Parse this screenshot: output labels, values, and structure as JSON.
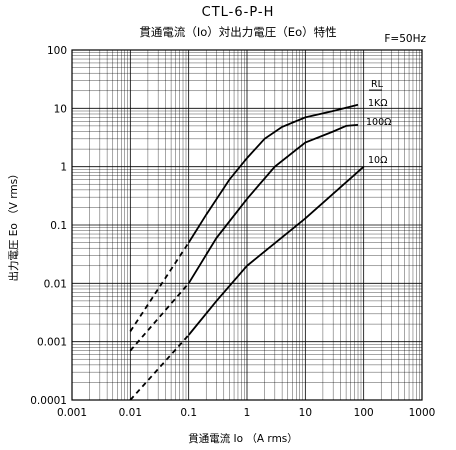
{
  "chart_data": {
    "type": "line",
    "title": "CTL-6-P-H",
    "subtitle": "貫通電流（Io）対出力電圧（Eo）特性",
    "note": "F=50Hz",
    "xlabel": "貫通電流 Io （A rms）",
    "ylabel": "出力電圧 Eo （V rms）",
    "x_scale": "log",
    "y_scale": "log",
    "xlim": [
      0.001,
      1000
    ],
    "ylim": [
      0.0001,
      100
    ],
    "x_ticks": [
      "0.001",
      "0.01",
      "0.1",
      "1",
      "10",
      "100",
      "1000"
    ],
    "y_ticks": [
      "100",
      "10",
      "1",
      "0.1",
      "0.01",
      "0.001",
      "0.0001"
    ],
    "grid": true,
    "legend_header": "RL",
    "series": [
      {
        "name": "1KΩ",
        "dashed": [
          [
            0.01,
            0.0015
          ],
          [
            0.1,
            0.05
          ]
        ],
        "solid": [
          [
            0.1,
            0.05
          ],
          [
            0.2,
            0.15
          ],
          [
            0.5,
            0.6
          ],
          [
            1,
            1.4
          ],
          [
            2,
            3
          ],
          [
            4,
            4.8
          ],
          [
            10,
            7
          ],
          [
            30,
            9
          ],
          [
            80,
            11.5
          ]
        ]
      },
      {
        "name": "100Ω",
        "dashed": [
          [
            0.01,
            0.0007
          ],
          [
            0.1,
            0.01
          ]
        ],
        "solid": [
          [
            0.1,
            0.01
          ],
          [
            0.3,
            0.06
          ],
          [
            1,
            0.28
          ],
          [
            3,
            1
          ],
          [
            10,
            2.6
          ],
          [
            30,
            4
          ],
          [
            50,
            5
          ],
          [
            80,
            5.2
          ]
        ]
      },
      {
        "name": "10Ω",
        "dashed": [
          [
            0.01,
            0.0001
          ],
          [
            0.1,
            0.0013
          ]
        ],
        "solid": [
          [
            0.1,
            0.0013
          ],
          [
            0.3,
            0.005
          ],
          [
            1,
            0.02
          ],
          [
            10,
            0.13
          ],
          [
            100,
            1
          ]
        ]
      }
    ]
  }
}
